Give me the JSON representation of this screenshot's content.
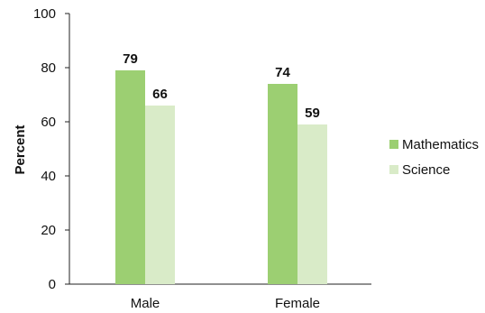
{
  "chart_data": {
    "type": "bar",
    "title": "",
    "xlabel": "",
    "ylabel": "Percent",
    "ylim": [
      0,
      100
    ],
    "yticks": [
      0,
      20,
      40,
      60,
      80,
      100
    ],
    "categories": [
      "Male",
      "Female"
    ],
    "series": [
      {
        "name": "Mathematics",
        "values": [
          79,
          74
        ],
        "color": "#9ccf72"
      },
      {
        "name": "Science",
        "values": [
          66,
          59
        ],
        "color": "#d9ebc8"
      }
    ],
    "data_labels": true,
    "grid": false,
    "legend_position": "right"
  }
}
